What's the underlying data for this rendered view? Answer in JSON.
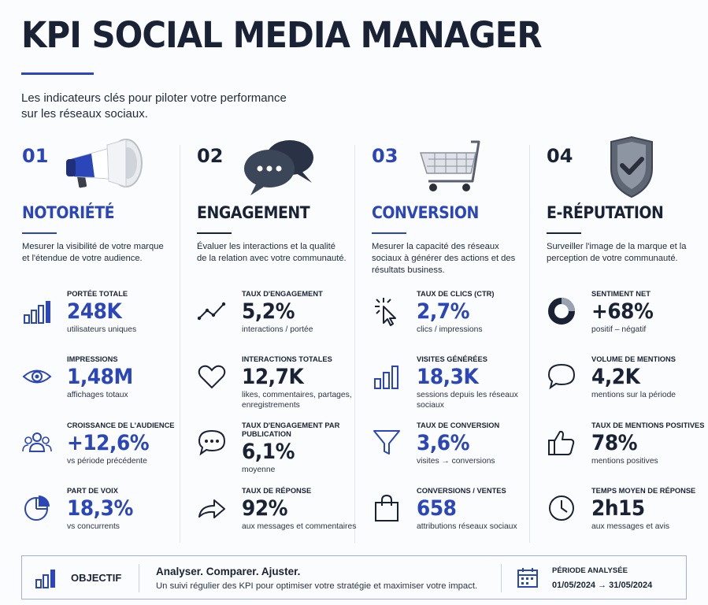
{
  "header": {
    "title": "KPI SOCIAL MEDIA MANAGER",
    "subtitle_line1": "Les indicateurs clés pour piloter votre performance",
    "subtitle_line2": "sur les réseaux sociaux."
  },
  "colors": {
    "accent": "#2b46b8",
    "dark": "#1a2236"
  },
  "columns": [
    {
      "number": "01",
      "title": "NOTORIÉTÉ",
      "hero_icon": "megaphone-icon",
      "description": "Mesurer la visibilité de votre marque et l'étendue de votre audience.",
      "kpis": [
        {
          "label": "PORTÉE TOTALE",
          "value": "248K",
          "sub": "utilisateurs uniques",
          "icon": "bar-chart-icon"
        },
        {
          "label": "IMPRESSIONS",
          "value": "1,48M",
          "sub": "affichages totaux",
          "icon": "eye-icon"
        },
        {
          "label": "CROISSANCE DE L'AUDIENCE",
          "value": "+12,6%",
          "sub": "vs période précédente",
          "icon": "users-icon"
        },
        {
          "label": "PART DE VOIX",
          "value": "18,3%",
          "sub": "vs concurrents",
          "icon": "pie-chart-icon"
        }
      ]
    },
    {
      "number": "02",
      "title": "ENGAGEMENT",
      "hero_icon": "chat-bubbles-icon",
      "description": "Évaluer les interactions et la qualité de la relation avec votre communauté.",
      "kpis": [
        {
          "label": "TAUX D'ENGAGEMENT",
          "value": "5,2%",
          "sub": "interactions / portée",
          "icon": "trend-line-icon"
        },
        {
          "label": "INTERACTIONS TOTALES",
          "value": "12,7K",
          "sub": "likes, commentaires, partages, enregistrements",
          "icon": "heart-icon"
        },
        {
          "label": "TAUX D'ENGAGEMENT PAR PUBLICATION",
          "value": "6,1%",
          "sub": "moyenne",
          "icon": "speech-bubble-icon"
        },
        {
          "label": "TAUX DE RÉPONSE",
          "value": "92%",
          "sub": "aux messages et commentaires",
          "icon": "reply-arrow-icon"
        }
      ]
    },
    {
      "number": "03",
      "title": "CONVERSION",
      "hero_icon": "shopping-cart-icon",
      "description": "Mesurer la capacité des réseaux sociaux à générer des actions et des résultats business.",
      "kpis": [
        {
          "label": "TAUX DE CLICS (CTR)",
          "value": "2,7%",
          "sub": "clics / impressions",
          "icon": "cursor-click-icon"
        },
        {
          "label": "VISITES GÉNÉRÉES",
          "value": "18,3K",
          "sub": "sessions depuis les réseaux sociaux",
          "icon": "bar-chart-icon"
        },
        {
          "label": "TAUX DE CONVERSION",
          "value": "3,6%",
          "sub": "visites → conversions",
          "icon": "funnel-icon"
        },
        {
          "label": "CONVERSIONS / VENTES",
          "value": "658",
          "sub": "attributions réseaux sociaux",
          "icon": "shopping-bag-icon"
        }
      ]
    },
    {
      "number": "04",
      "title": "E-RÉPUTATION",
      "hero_icon": "shield-check-icon",
      "description": "Surveiller l'image de la marque et la perception de votre communauté.",
      "kpis": [
        {
          "label": "SENTIMENT NET",
          "value": "+68%",
          "sub": "positif – négatif",
          "icon": "donut-chart-icon"
        },
        {
          "label": "VOLUME DE MENTIONS",
          "value": "4,2K",
          "sub": "mentions sur la période",
          "icon": "speech-bubble-icon"
        },
        {
          "label": "TAUX DE MENTIONS POSITIVES",
          "value": "78%",
          "sub": "mentions positives",
          "icon": "thumbs-up-icon"
        },
        {
          "label": "TEMPS MOYEN DE RÉPONSE",
          "value": "2h15",
          "sub": "aux messages et avis",
          "icon": "clock-icon"
        }
      ]
    }
  ],
  "footer": {
    "objective_label": "OBJECTIF",
    "tagline": "Analyser. Comparer. Ajuster.",
    "tagline_sub": "Un suivi régulier des KPI pour optimiser votre stratégie et maximiser votre impact.",
    "period_label": "PÉRIODE ANALYSÉE",
    "period_value": "01/05/2024 → 31/05/2024"
  }
}
